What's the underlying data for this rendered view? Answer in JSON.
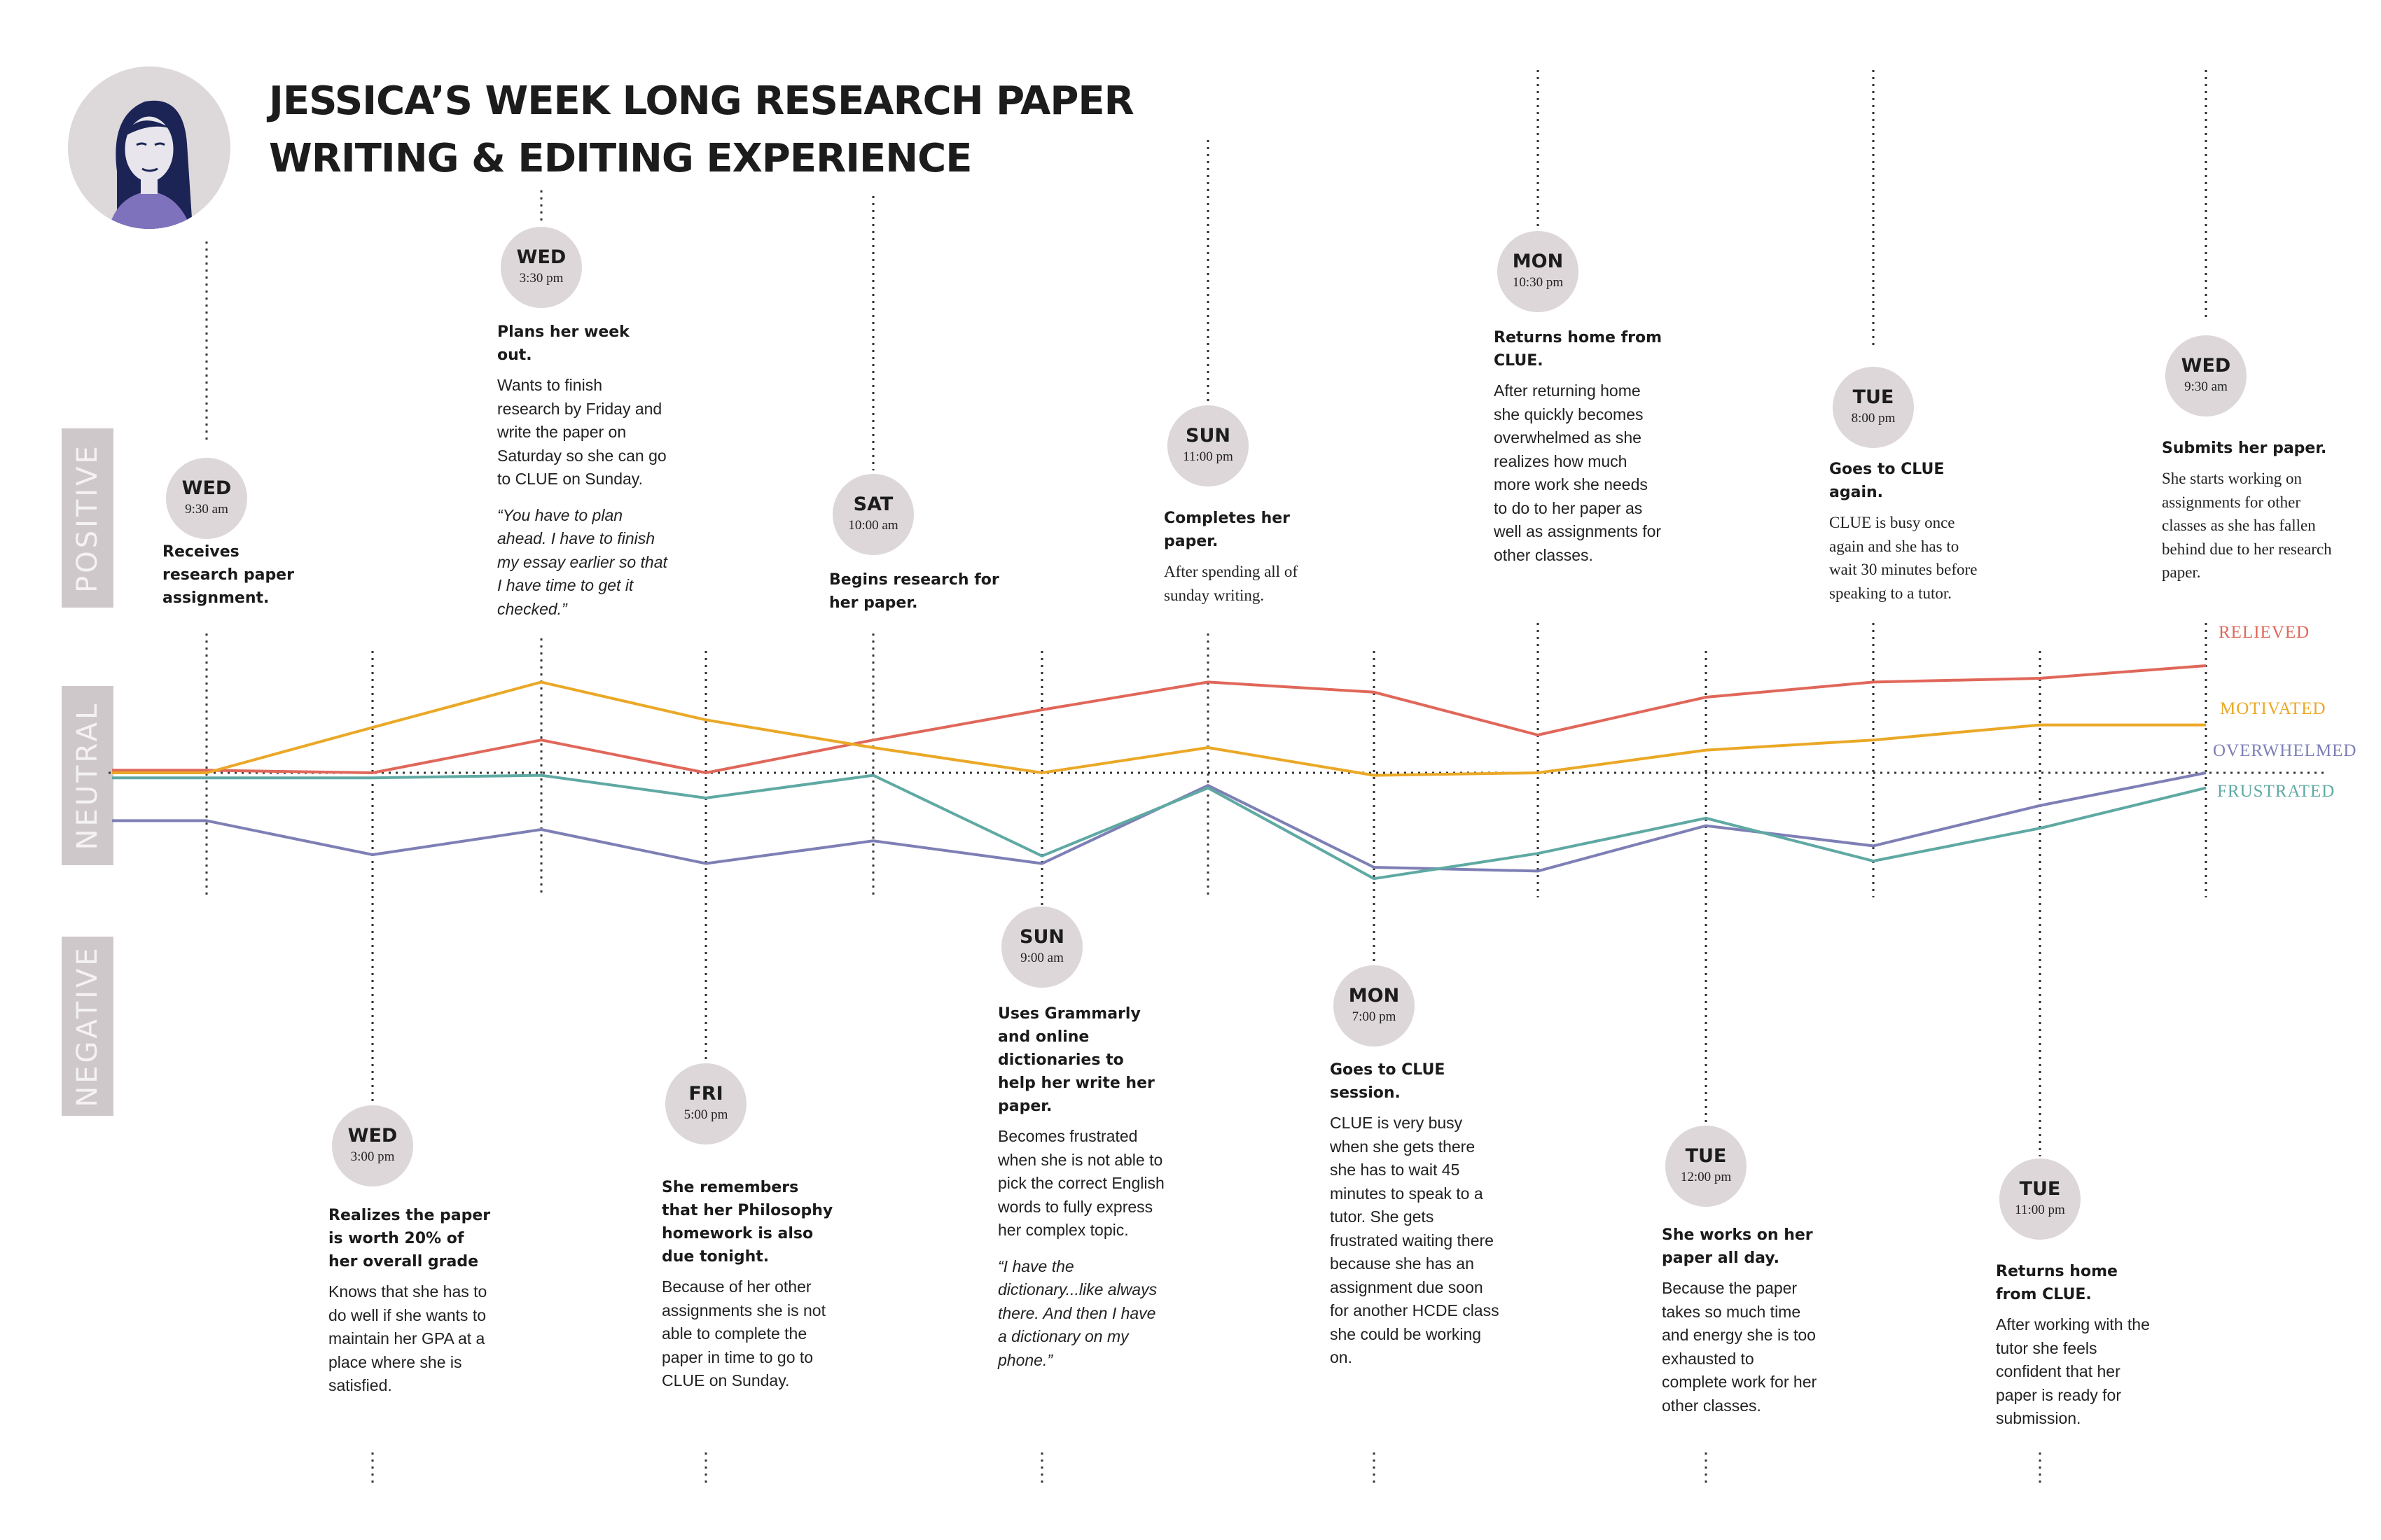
{
  "title": {
    "line1": "JESSICA’S WEEK LONG RESEARCH PAPER",
    "line2": "WRITING & EDITING EXPERIENCE"
  },
  "zones": {
    "positive": "POSITIVE",
    "neutral": "NEUTRAL",
    "negative": "NEGATIVE"
  },
  "colors": {
    "relieved": "#e0675a",
    "motivated": "#eaa826",
    "overwhelmed": "#7e7fb5",
    "frustrated": "#5fa9a3",
    "bubble": "#ddd7da",
    "zone_bar": "#cfc8ca"
  },
  "chart_data": {
    "type": "line",
    "categories": [
      "Wed 9:30 am",
      "Wed 3:00 pm",
      "Wed 3:30 pm",
      "Fri 5:00 pm",
      "Sat 10:00 am",
      "Sun 9:00 am",
      "Sun 11:00 pm",
      "Mon 7:00 pm",
      "Mon 10:30 pm",
      "Tue 12:00 pm",
      "Tue 8:00 pm",
      "Tue 11:00 pm",
      "Wed 9:30 am"
    ],
    "series": [
      {
        "name": "RELIEVED",
        "values": [
          0.02,
          0,
          0.26,
          0,
          0.26,
          0.5,
          0.72,
          0.64,
          0.3,
          0.6,
          0.72,
          0.75,
          0.85
        ]
      },
      {
        "name": "MOTIVATED",
        "values": [
          0,
          0.36,
          0.72,
          0.42,
          0.2,
          0,
          0.2,
          -0.02,
          0,
          0.18,
          0.26,
          0.38,
          0.38
        ]
      },
      {
        "name": "OVERWHELMED",
        "values": [
          -0.38,
          -0.65,
          -0.45,
          -0.72,
          -0.54,
          -0.72,
          -0.1,
          -0.75,
          -0.78,
          -0.42,
          -0.58,
          -0.26,
          0
        ]
      },
      {
        "name": "FRUSTRATED",
        "values": [
          -0.04,
          -0.04,
          -0.02,
          -0.2,
          -0.02,
          -0.66,
          -0.12,
          -0.84,
          -0.64,
          -0.36,
          -0.7,
          -0.44,
          -0.12
        ]
      }
    ],
    "ylim": [
      -1,
      1
    ]
  },
  "events": [
    {
      "day": "WED",
      "time": "9:30 am",
      "head": "Receives research paper assignment.",
      "body": "",
      "quote": ""
    },
    {
      "day": "WED",
      "time": "3:00 pm",
      "head": "Realizes the paper is worth 20% of her overall grade",
      "body": "Knows that she has to do well if she wants to maintain her GPA at a place where she is satisfied.",
      "quote": ""
    },
    {
      "day": "WED",
      "time": "3:30 pm",
      "head": "Plans her week out.",
      "body": "Wants to finish research by Friday and write the paper on Saturday so she can go to CLUE on Sunday.",
      "quote": "“You have to plan ahead. I have to finish my essay earlier so that I have time to get it checked.”"
    },
    {
      "day": "FRI",
      "time": "5:00 pm",
      "head": "She remembers that her Philosophy homework is also due tonight.",
      "body": "Because of her other assignments she is not able to complete the paper in time to go to CLUE on Sunday.",
      "quote": ""
    },
    {
      "day": "SAT",
      "time": "10:00 am",
      "head": "Begins research for her paper.",
      "body": "",
      "quote": ""
    },
    {
      "day": "SUN",
      "time": "9:00 am",
      "head": "Uses Grammarly and online dictionaries to help her write her paper.",
      "body": "Becomes frustrated when she is not able to pick the correct English words to fully express her complex topic.",
      "quote": "“I have the dictionary...like always there. And then I have a dictionary on my phone.”"
    },
    {
      "day": "SUN",
      "time": "11:00 pm",
      "head": "Completes her paper.",
      "body": "After spending all of sunday writing.",
      "quote": ""
    },
    {
      "day": "MON",
      "time": "7:00 pm",
      "head": "Goes to CLUE session.",
      "body": "CLUE is very busy when she gets there she has to wait 45 minutes to speak to a tutor. She gets frustrated waiting there because she has an assignment due soon for another HCDE class she could be working on.",
      "quote": ""
    },
    {
      "day": "MON",
      "time": "10:30 pm",
      "head": "Returns home from CLUE.",
      "body": "After returning home she quickly becomes overwhelmed as she realizes how much more work she needs to do to her paper as well as assignments for other classes.",
      "quote": ""
    },
    {
      "day": "TUE",
      "time": "12:00 pm",
      "head": "She works on her paper all day.",
      "body": "Because the paper takes so much time and energy she is too  exhausted to complete work for her other classes.",
      "quote": ""
    },
    {
      "day": "TUE",
      "time": "8:00 pm",
      "head": "Goes to CLUE again.",
      "body": "CLUE is busy once again and she has to wait 30 minutes before speaking to a tutor.",
      "quote": ""
    },
    {
      "day": "TUE",
      "time": "11:00 pm",
      "head": "Returns home from CLUE.",
      "body": "After working with the tutor she feels confident that her paper is ready for submission.",
      "quote": ""
    },
    {
      "day": "WED",
      "time": "9:30 am",
      "head": "Submits her paper.",
      "body": "She starts working on assignments for other classes as she has fallen behind due to her research paper.",
      "quote": ""
    }
  ]
}
